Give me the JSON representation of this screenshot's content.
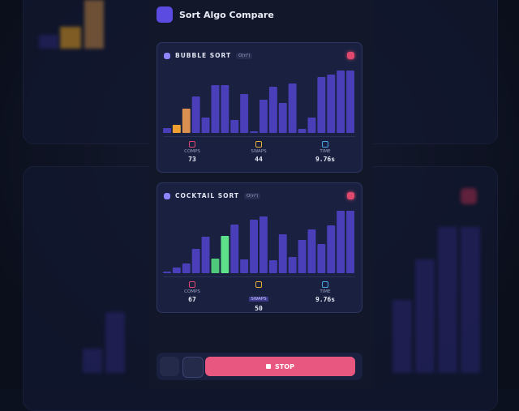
{
  "header": {
    "title": "Sort Algo Compare"
  },
  "algorithms": [
    {
      "name": "BUBBLE SORT",
      "complexity": "O(n²)",
      "bars": [
        6,
        10,
        30,
        45,
        19,
        59,
        59,
        16,
        48,
        2,
        41,
        57,
        37,
        61,
        5,
        19,
        69,
        72,
        77,
        77
      ],
      "bar_colors": [
        "#4a3fb8",
        "#f0a030",
        "#d99050",
        "#4a3fb8",
        "#4a3fb8",
        "#4a3fb8",
        "#4a3fb8",
        "#4a3fb8",
        "#4a3fb8",
        "#4a3fb8",
        "#4a3fb8",
        "#4a3fb8",
        "#4a3fb8",
        "#4a3fb8",
        "#4a3fb8",
        "#4a3fb8",
        "#4a3fb8",
        "#4a3fb8",
        "#4a3fb8",
        "#4a3fb8"
      ],
      "stats": [
        {
          "label": "COMPS",
          "value": 73
        },
        {
          "label": "SWAPS",
          "value": 44
        },
        {
          "label": "TIME",
          "value": "9.76s"
        }
      ]
    },
    {
      "name": "COCKTAIL SORT",
      "complexity": "O(n²)",
      "bars": [
        2,
        7,
        12,
        30,
        45,
        18,
        46,
        60,
        17,
        66,
        70,
        16,
        48,
        20,
        41,
        54,
        36,
        59,
        77,
        77
      ],
      "bar_colors": [
        "#4a3fb8",
        "#4a3fb8",
        "#4a3fb8",
        "#4a3fb8",
        "#4a3fb8",
        "#4fc97a",
        "#5ee08a",
        "#4a3fb8",
        "#4a3fb8",
        "#4a3fb8",
        "#4a3fb8",
        "#4a3fb8",
        "#4a3fb8",
        "#4a3fb8",
        "#4a3fb8",
        "#4a3fb8",
        "#4a3fb8",
        "#4a3fb8",
        "#4a3fb8",
        "#4a3fb8"
      ],
      "stats": [
        {
          "label": "COMPS",
          "value": 67
        },
        {
          "label": "SWAPS",
          "value": 50
        },
        {
          "label": "TIME",
          "value": "9.76s"
        }
      ]
    }
  ],
  "controls": {
    "stop": "STOP"
  }
}
